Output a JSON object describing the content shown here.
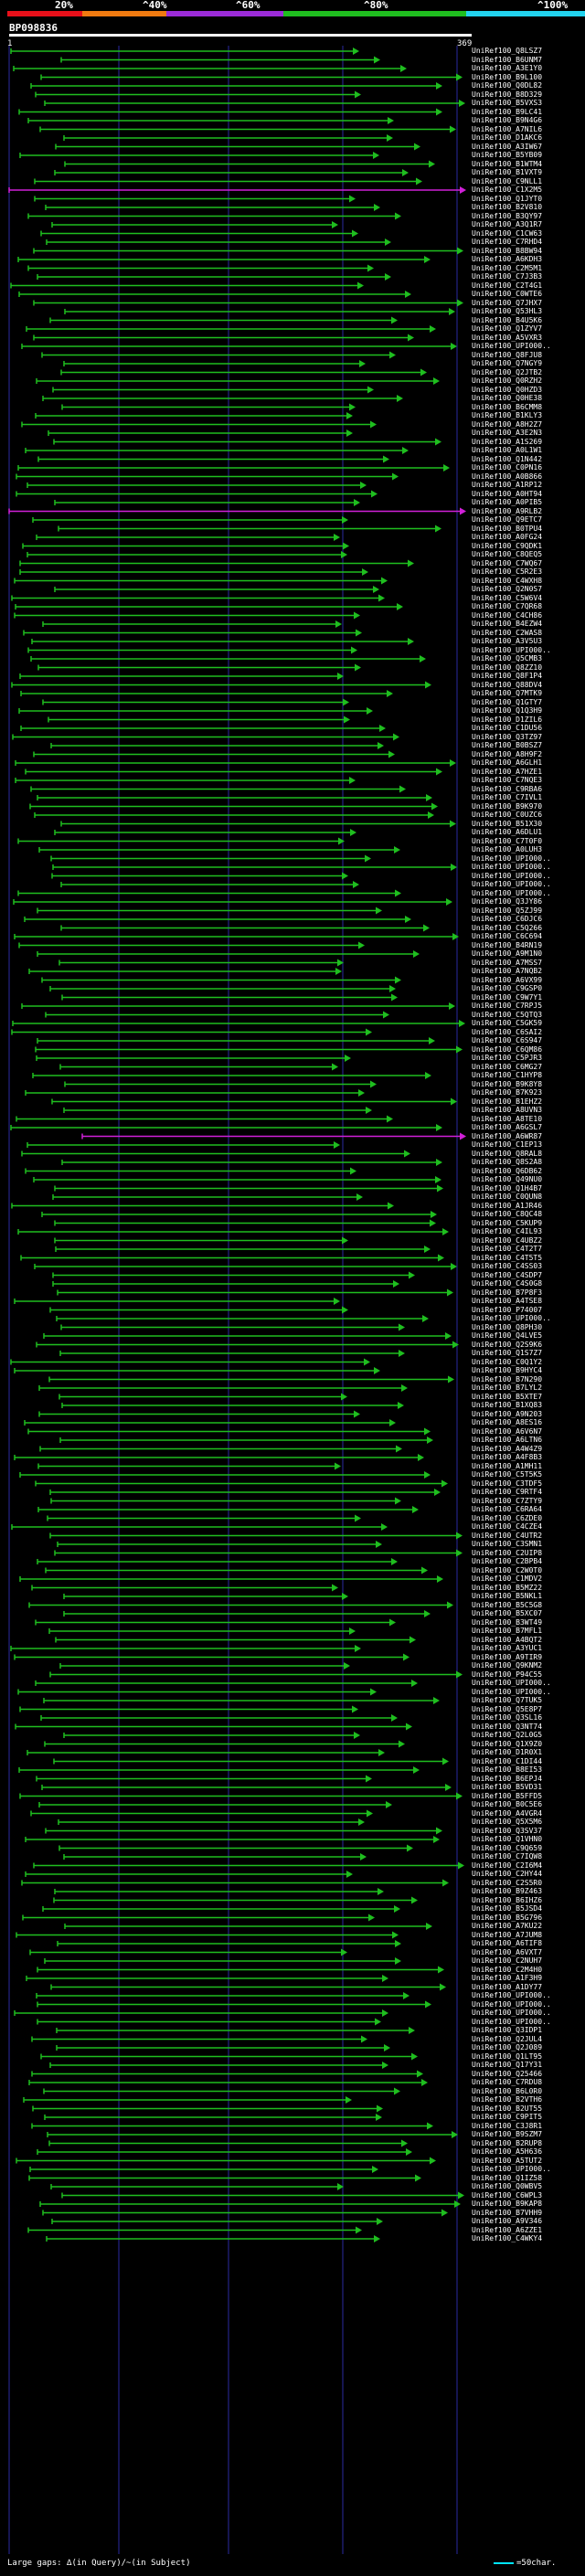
{
  "legend": {
    "labels": [
      "20%",
      "^40%",
      "^60%",
      "^80%",
      "^100%"
    ],
    "colors": [
      "#e8101a",
      "#f07a10",
      "#9b2bd8",
      "#1fbe1f",
      "#22d3ee"
    ]
  },
  "query": {
    "name": "BP098836",
    "start": "1",
    "end": "369"
  },
  "colors": {
    "green": "#1fbe1f",
    "magenta": "#d020d8",
    "cyan": "#22d3ee",
    "white": "#ffffff",
    "grid": "#2a2aa0"
  },
  "hits": [
    "UniRef100_Q8LSZ7",
    "UniRef100_B6UNM7",
    "UniRef100_A3E1Y0",
    "UniRef100_B9L100",
    "UniRef100_Q0DL82",
    "UniRef100_B8D329",
    "UniRef100_B5VXS3",
    "UniRef100_B9LC41",
    "UniRef100_B9N4G6",
    "UniRef100_A7NIL6",
    "UniRef100_D1AKC6",
    "UniRef100_A3IW67",
    "UniRef100_B5YB09",
    "UniRef100_B1WTM4",
    "UniRef100_B1VXT9",
    "UniRef100_C9NLL1",
    "UniRef100_C1X2M5",
    "UniRef100_Q1JYT0",
    "UniRef100_B2V810",
    "UniRef100_B3QY97",
    "UniRef100_A3Q1R7",
    "UniRef100_C1CW63",
    "UniRef100_C7RHD4",
    "UniRef100_B8BW94",
    "UniRef100_A6KDH3",
    "UniRef100_C2M5M1",
    "UniRef100_C7J3B3",
    "UniRef100_C2T4G1",
    "UniRef100_C0WTE6",
    "UniRef100_Q7JHX7",
    "UniRef100_Q53HL3",
    "UniRef100_B4U5K6",
    "UniRef100_Q1ZYV7",
    "UniRef100_A5VXR3",
    "UniRef100_UPI000..",
    "UniRef100_Q8FJU8",
    "UniRef100_Q7NGY9",
    "UniRef100_Q2JTB2",
    "UniRef100_Q0RZH2",
    "UniRef100_Q0HZD3",
    "UniRef100_Q0HE38",
    "UniRef100_B6CMM8",
    "UniRef100_B1KLY3",
    "UniRef100_A8H2Z7",
    "UniRef100_A3E2N3",
    "UniRef100_A1S269",
    "UniRef100_A0L1W1",
    "UniRef100_Q1N442",
    "UniRef100_C0PN16",
    "UniRef100_A0B866",
    "UniRef100_A1RP12",
    "UniRef100_A0HT94",
    "UniRef100_A0PIB5",
    "UniRef100_A9RLB2",
    "UniRef100_Q9ETC7",
    "UniRef100_B0TPU4",
    "UniRef100_A0FG24",
    "UniRef100_C9QDK1",
    "UniRef100_C8QEQ5",
    "UniRef100_C7WQ67",
    "UniRef100_C5R2E3",
    "UniRef100_C4WXH8",
    "UniRef100_Q2N0S7",
    "UniRef100_C5W6V4",
    "UniRef100_C7QR68",
    "UniRef100_C4CH86",
    "UniRef100_B4EZW4",
    "UniRef100_C2WAS8",
    "UniRef100_A3V5U3",
    "UniRef100_UPI000..",
    "UniRef100_Q5CMB3",
    "UniRef100_Q8ZZ10",
    "UniRef100_Q8F1P4",
    "UniRef100_Q88DV4",
    "UniRef100_Q7MTK9",
    "UniRef100_Q1GTY7",
    "UniRef100_Q1Q3H9",
    "UniRef100_D1ZIL6",
    "UniRef100_C1DU56",
    "UniRef100_Q3TZ97",
    "UniRef100_B0BSZ7",
    "UniRef100_A8H9F2",
    "UniRef100_A6GLH1",
    "UniRef100_A7HZE1",
    "UniRef100_C7NQE3",
    "UniRef100_C9RBA6",
    "UniRef100_C7IVL1",
    "UniRef100_B9K970",
    "UniRef100_C0UZC6",
    "UniRef100_B51X30",
    "UniRef100_A6DLU1",
    "UniRef100_C7T0F0",
    "UniRef100_A0LUH3",
    "UniRef100_UPI000..",
    "UniRef100_UPI000..",
    "UniRef100_UPI000..",
    "UniRef100_UPI000..",
    "UniRef100_UPI000..",
    "UniRef100_Q3JY86",
    "UniRef100_Q5ZJ99",
    "UniRef100_C6DJC6",
    "UniRef100_C5Q266",
    "UniRef100_C6C694",
    "UniRef100_B4RN19",
    "UniRef100_A9M1N0",
    "UniRef100_A7MSS7",
    "UniRef100_A7NQB2",
    "UniRef100_A6VX99",
    "UniRef100_C9GSP0",
    "UniRef100_C9W7Y1",
    "UniRef100_C7RPJ5",
    "UniRef100_C5QTQ3",
    "UniRef100_C5GK59",
    "UniRef100_C6SAI2",
    "UniRef100_C6S947",
    "UniRef100_C6QM86",
    "UniRef100_C5PJR3",
    "UniRef100_C6MG27",
    "UniRef100_C1HYP8",
    "UniRef100_B9K8Y8",
    "UniRef100_B7K923",
    "UniRef100_B1EHZ2",
    "UniRef100_A8UVN3",
    "UniRef100_A8TE10",
    "UniRef100_A6GSL7",
    "UniRef100_A6WR87",
    "UniRef100_C1EP13",
    "UniRef100_Q8RAL8",
    "UniRef100_Q8S2A8",
    "UniRef100_Q6DB62",
    "UniRef100_Q49NU0",
    "UniRef100_Q1H4B7",
    "UniRef100_C0QUN8",
    "UniRef100_A1JR46",
    "UniRef100_C8QC48",
    "UniRef100_C5KUP9",
    "UniRef100_C4IL93",
    "UniRef100_C4UBZ2",
    "UniRef100_C4T2T7",
    "UniRef100_C4T5T5",
    "UniRef100_C4SS03",
    "UniRef100_C4SDP7",
    "UniRef100_C4S0G8",
    "UniRef100_B7P8F3",
    "UniRef100_A4TSE8",
    "UniRef100_P74007",
    "UniRef100_UPI000..",
    "UniRef100_Q8PH30",
    "UniRef100_Q4LVE5",
    "UniRef100_Q2S9K6",
    "UniRef100_Q1S7Z7",
    "UniRef100_C0Q1Y2",
    "UniRef100_B9HYC4",
    "UniRef100_B7N290",
    "UniRef100_B7LYL2",
    "UniRef100_B5XTE7",
    "UniRef100_B1XQ83",
    "UniRef100_A9N203",
    "UniRef100_A8ES16",
    "UniRef100_A6V6N7",
    "UniRef100_A6LTN6",
    "UniRef100_A4W4Z9",
    "UniRef100_A4F8B3",
    "UniRef100_A1MH11",
    "UniRef100_C5T5K5",
    "UniRef100_C3TDF5",
    "UniRef100_C9RTF4",
    "UniRef100_C7ZTY9",
    "UniRef100_C6RA64",
    "UniRef100_C6ZDE0",
    "UniRef100_C4CZE4",
    "UniRef100_C4UTR2",
    "UniRef100_C3SMN1",
    "UniRef100_C2UIP8",
    "UniRef100_C2BPB4",
    "UniRef100_C2W0T0",
    "UniRef100_C1MDV2",
    "UniRef100_B5MZ22",
    "UniRef100_B5NKL1",
    "UniRef100_B5C5G8",
    "UniRef100_B5XC07",
    "UniRef100_B3WT49",
    "UniRef100_B7MFL1",
    "UniRef100_A4BQT2",
    "UniRef100_A3YUC1",
    "UniRef100_A9TIR9",
    "UniRef100_Q9KNM2",
    "UniRef100_P94C55",
    "UniRef100_UPI000..",
    "UniRef100_UPI000..",
    "UniRef100_Q7TUK5",
    "UniRef100_Q5E8P7",
    "UniRef100_Q3SL16",
    "UniRef100_Q3NT74",
    "UniRef100_Q2L0G5",
    "UniRef100_Q1X9Z0",
    "UniRef100_D1R0X1",
    "UniRef100_C1DI44",
    "UniRef100_B8EI53",
    "UniRef100_B6EPJ4",
    "UniRef100_B5VD31",
    "UniRef100_B5FFD5",
    "UniRef100_B0C5E6",
    "UniRef100_A4VGR4",
    "UniRef100_Q5X5M6",
    "UniRef100_Q3SV37",
    "UniRef100_Q1VHN0",
    "UniRef100_C9Q659",
    "UniRef100_C7IQW8",
    "UniRef100_C2I6M4",
    "UniRef100_C2HY44",
    "UniRef100_C2S5R0",
    "UniRef100_B9Z463",
    "UniRef100_B6IHZ6",
    "UniRef100_B5JSD4",
    "UniRef100_B5G796",
    "UniRef100_A7KU22",
    "UniRef100_A7JUM8",
    "UniRef100_A6TIF8",
    "UniRef100_A6VXT7",
    "UniRef100_C2NUH7",
    "UniRef100_C2M4H0",
    "UniRef100_A1F3H9",
    "UniRef100_A1DY77",
    "UniRef100_UPI000..",
    "UniRef100_UPI000..",
    "UniRef100_UPI000..",
    "UniRef100_UPI000..",
    "UniRef100_Q3IDP1",
    "UniRef100_Q2JUL4",
    "UniRef100_Q2J089",
    "UniRef100_Q1LT95",
    "UniRef100_Q17Y31",
    "UniRef100_Q25466",
    "UniRef100_C7RDU8",
    "UniRef100_B6L0R0",
    "UniRef100_B2VTH6",
    "UniRef100_B2UT55",
    "UniRef100_C9PIT5",
    "UniRef100_C3J8R1",
    "UniRef100_B9SZM7",
    "UniRef100_B2RUP8",
    "UniRef100_A5H636",
    "UniRef100_A5TUT2",
    "UniRef100_UPI000..",
    "UniRef100_Q1IZ58",
    "UniRef100_Q0WBV5",
    "UniRef100_C6WPL3",
    "UniRef100_B9KAP8",
    "UniRef100_B7VHH9",
    "UniRef100_A9V346",
    "UniRef100_A6ZZE1",
    "UniRef100_C4WKY4"
  ],
  "footer": {
    "text": "Large gaps: ∆(in Query)/~(in Subject)",
    "key": "=50char."
  }
}
